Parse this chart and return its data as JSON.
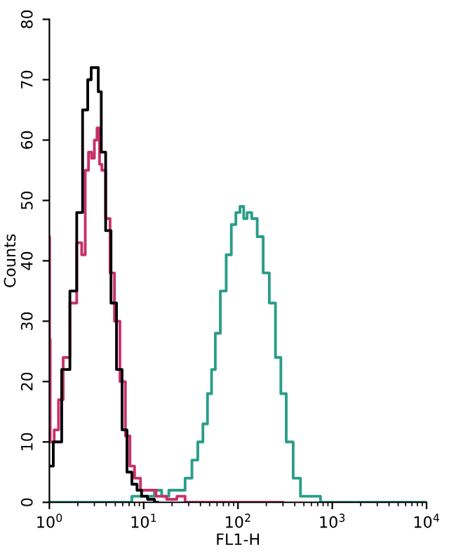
{
  "chart_data": {
    "type": "step",
    "xlabel": "FL1-H",
    "ylabel": "Counts",
    "log": "x",
    "grid": false,
    "legend": false,
    "marker": "none",
    "line_style": "solid",
    "xlim": [
      1,
      10000
    ],
    "ylim": [
      0,
      80
    ],
    "xticks": [
      {
        "value": 1,
        "label": "10$^{0}$"
      },
      {
        "value": 10,
        "label": "10$^{1}$"
      },
      {
        "value": 100,
        "label": "10$^{2}$"
      },
      {
        "value": 1000,
        "label": "10$^{3}$"
      },
      {
        "value": 10000,
        "label": "10$^{4}$"
      }
    ],
    "yticks": [
      0,
      10,
      20,
      30,
      40,
      50,
      60,
      70,
      80
    ],
    "series": [
      {
        "color": "#2a9d8a",
        "x": [
          1,
          7,
          8,
          10,
          12,
          14,
          17,
          20,
          25,
          30,
          35,
          40,
          45,
          50,
          55,
          60,
          70,
          80,
          90,
          100,
          110,
          120,
          130,
          150,
          170,
          200,
          230,
          270,
          300,
          350,
          420,
          500,
          600,
          700,
          800,
          10000
        ],
        "values": [
          0,
          0,
          1,
          1,
          1,
          2,
          1,
          2,
          2,
          4,
          7,
          10,
          13,
          18,
          22,
          28,
          35,
          41,
          46,
          48,
          49,
          47,
          48,
          47,
          44,
          38,
          33,
          24,
          18,
          10,
          4,
          1,
          1,
          1,
          0,
          0
        ]
      },
      {
        "color": "#c8306a",
        "x": [
          1,
          1.01,
          1.03,
          1.05,
          1.2,
          1.3,
          1.5,
          1.8,
          2.1,
          2.3,
          2.5,
          2.7,
          2.9,
          3.1,
          3.3,
          3.5,
          3.7,
          4.2,
          4.6,
          5.2,
          6,
          6.8,
          7.5,
          8.5,
          10,
          12,
          15,
          20,
          25,
          30,
          300
        ],
        "values": [
          44,
          27,
          10,
          10,
          12,
          17,
          24,
          33,
          43,
          41,
          55,
          58,
          57,
          60,
          62,
          56,
          55,
          47,
          38,
          30,
          20,
          11,
          6,
          4,
          2,
          2,
          1,
          0.5,
          1,
          0,
          0
        ]
      },
      {
        "color": "#000000",
        "x": [
          1,
          1.2,
          1.5,
          1.8,
          2.1,
          2.4,
          2.7,
          2.85,
          3.2,
          3.4,
          3.7,
          4.2,
          4.8,
          5.5,
          6.3,
          7,
          8,
          9,
          10,
          12,
          14
        ],
        "values": [
          6,
          10,
          22,
          35,
          48,
          65,
          70,
          72,
          72,
          68,
          58,
          45,
          33,
          22,
          12,
          5,
          3,
          2,
          1,
          0.5,
          0
        ]
      }
    ]
  }
}
